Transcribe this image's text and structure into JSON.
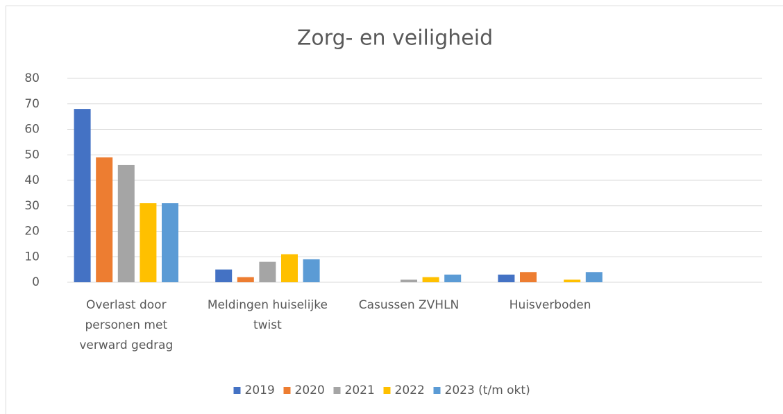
{
  "chart_data": {
    "type": "bar",
    "title": "Zorg- en veiligheid",
    "categories": [
      "Overlast door personen met verward gedrag",
      "Meldingen huiselijke twist",
      "Casussen ZVHLN",
      "Huisverboden",
      null
    ],
    "series": [
      {
        "name": "2019",
        "color": "#4472c4",
        "values": [
          68,
          5,
          0,
          3,
          null
        ]
      },
      {
        "name": "2020",
        "color": "#ed7d31",
        "values": [
          49,
          2,
          0,
          4,
          null
        ]
      },
      {
        "name": "2021",
        "color": "#a5a5a5",
        "values": [
          46,
          8,
          1,
          0,
          null
        ]
      },
      {
        "name": "2022",
        "color": "#ffc000",
        "values": [
          31,
          11,
          2,
          1,
          null
        ]
      },
      {
        "name": "2023 (t/m okt)",
        "color": "#5b9bd5",
        "values": [
          31,
          9,
          3,
          4,
          null
        ]
      }
    ],
    "ylim": [
      0,
      80
    ],
    "yticks": [
      0,
      10,
      20,
      30,
      40,
      50,
      60,
      70,
      80
    ],
    "grid": true,
    "legend": "bottom"
  }
}
